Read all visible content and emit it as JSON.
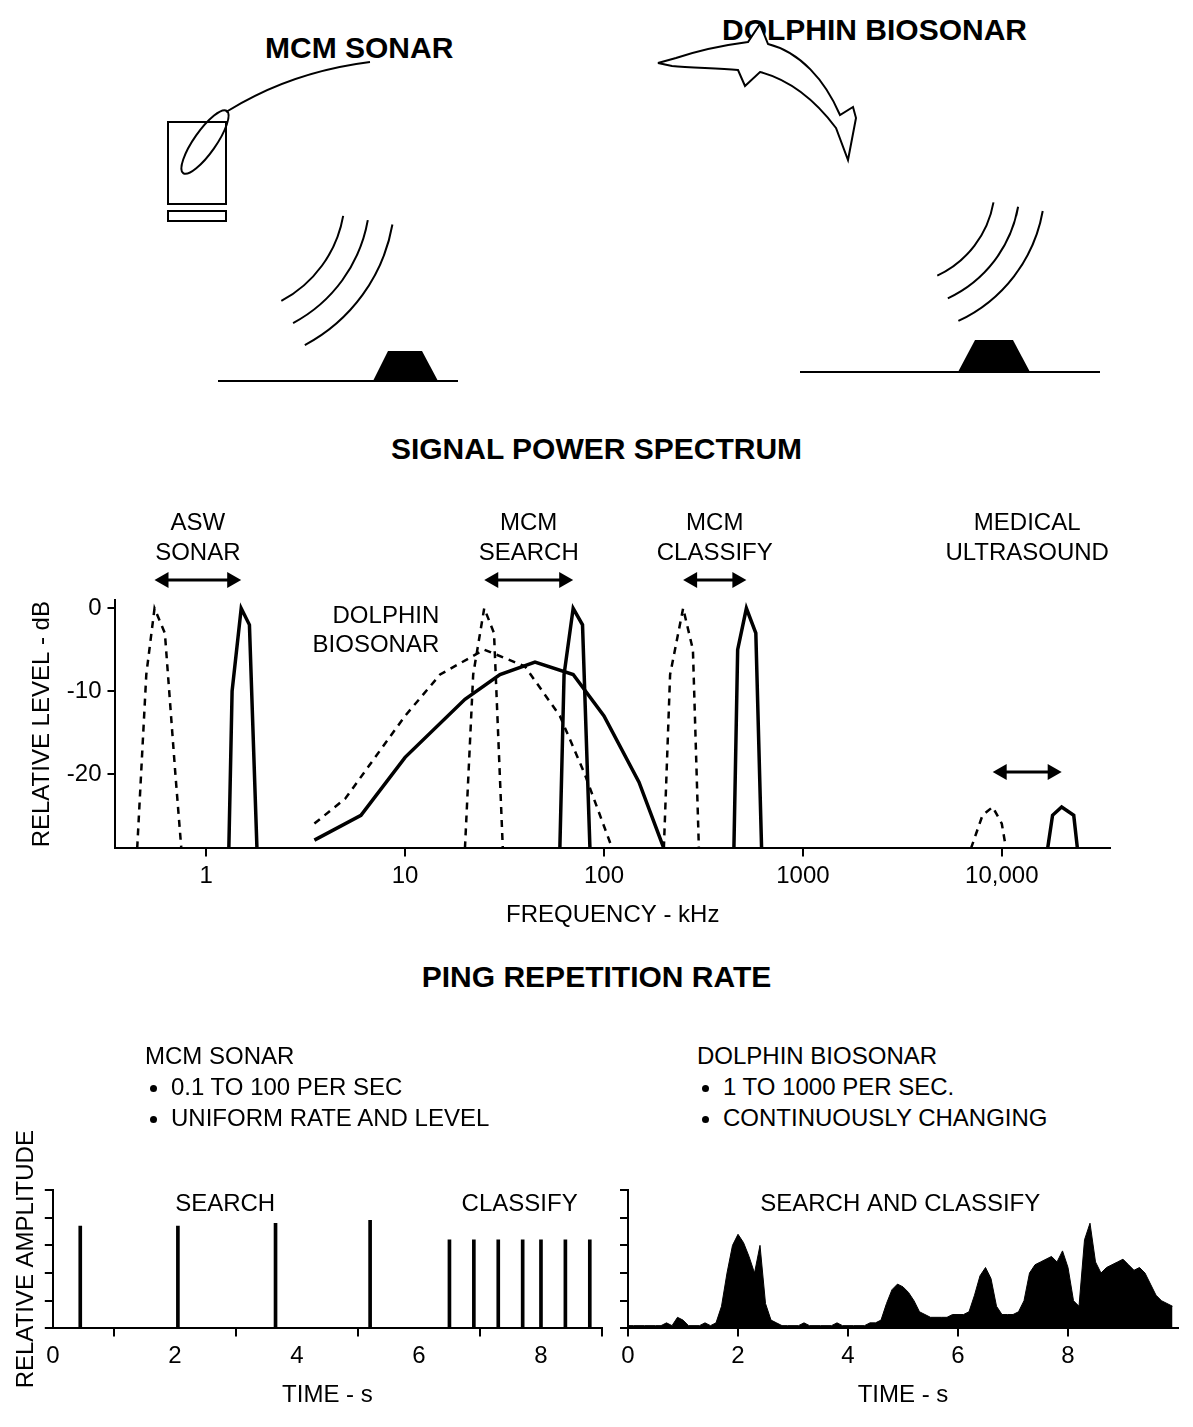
{
  "diagram": {
    "labels": [
      "MCM SONAR",
      "DOLPHIN BIOSONAR"
    ]
  },
  "section_title": "PING REPETITION RATE",
  "chart_data": [
    {
      "type": "line",
      "title": "SIGNAL POWER SPECTRUM",
      "x_label": "FREQUENCY - kHz",
      "y_label": "RELATIVE LEVEL - dB",
      "log": "x",
      "grid": false,
      "xlim": [
        0.35,
        35000
      ],
      "xticks": [
        1,
        10,
        100,
        1000,
        {
          "value": 10000,
          "label": "10,000"
        }
      ],
      "ylim": [
        -29,
        1
      ],
      "yticks": [
        -20,
        -10,
        0
      ],
      "annotations": [
        "ASW SONAR",
        "DOLPHIN BIOSONAR",
        "MCM SEARCH",
        "MCM CLASSIFY",
        "MEDICAL ULTRASOUND"
      ],
      "series": [
        {
          "x": [
            0.45,
            0.5,
            0.55,
            0.62,
            0.7,
            0.75
          ],
          "values": [
            -29,
            -8,
            0,
            -3,
            -20,
            -29
          ],
          "line_style": "dashed",
          "color": "#000000"
        },
        {
          "x": [
            1.3,
            1.35,
            1.5,
            1.65,
            1.8
          ],
          "values": [
            -29,
            -10,
            0,
            -2,
            -29
          ],
          "line_style": "solid",
          "color": "#000000"
        },
        {
          "x": [
            3.5,
            5,
            10,
            15,
            25,
            40,
            60,
            80,
            110
          ],
          "values": [
            -26,
            -23,
            -13,
            -8,
            -5,
            -7,
            -13,
            -20,
            -29
          ],
          "line_style": "dashed",
          "color": "#000000"
        },
        {
          "x": [
            3.5,
            6,
            10,
            20,
            30,
            45,
            70,
            100,
            150,
            200
          ],
          "values": [
            -28,
            -25,
            -18,
            -11,
            -8,
            -6.5,
            -8,
            -13,
            -21,
            -29
          ],
          "line_style": "solid",
          "color": "#000000"
        },
        {
          "x": [
            20,
            22,
            25,
            28,
            31
          ],
          "values": [
            -29,
            -8,
            0,
            -3,
            -29
          ],
          "line_style": "dashed",
          "color": "#000000"
        },
        {
          "x": [
            60,
            63,
            70,
            78,
            85
          ],
          "values": [
            -29,
            -8,
            0,
            -2,
            -29
          ],
          "line_style": "solid",
          "color": "#000000"
        },
        {
          "x": [
            200,
            215,
            250,
            280,
            300
          ],
          "values": [
            -29,
            -8,
            0,
            -5,
            -29
          ],
          "line_style": "dashed",
          "color": "#000000"
        },
        {
          "x": [
            450,
            470,
            520,
            580,
            620
          ],
          "values": [
            -29,
            -5,
            0,
            -3,
            -29
          ],
          "line_style": "solid",
          "color": "#000000"
        },
        {
          "x": [
            7000,
            8000,
            9000,
            10000,
            10500
          ],
          "values": [
            -29,
            -25,
            -24,
            -26,
            -29
          ],
          "line_style": "dashed",
          "color": "#000000"
        },
        {
          "x": [
            17000,
            18000,
            20000,
            23000,
            24000
          ],
          "values": [
            -29,
            -25,
            -24,
            -25,
            -29
          ],
          "line_style": "solid",
          "color": "#000000"
        }
      ]
    },
    {
      "type": "bar",
      "title": "MCM SONAR",
      "notes": [
        "0.1 TO 100 PER SEC",
        "UNIFORM RATE AND LEVEL"
      ],
      "x_label": "TIME - s",
      "y_label": "RELATIVE AMPLITUDE",
      "grid": false,
      "tick_labels": "x",
      "xlim": [
        0,
        9
      ],
      "xticks": [
        0,
        2,
        4,
        6,
        8
      ],
      "ylim": [
        0,
        5
      ],
      "yticks": [
        0,
        1,
        2,
        3,
        4,
        5
      ],
      "series": [
        {
          "name": "SEARCH",
          "x": [
            0.45,
            2.05,
            3.65,
            5.2
          ],
          "values": [
            3.7,
            3.7,
            3.8,
            3.9
          ],
          "color": "#000000"
        },
        {
          "name": "CLASSIFY",
          "x": [
            6.5,
            6.9,
            7.3,
            7.7,
            8.0,
            8.4,
            8.8
          ],
          "values": [
            3.2,
            3.2,
            3.2,
            3.2,
            3.2,
            3.2,
            3.2
          ],
          "color": "#000000"
        }
      ]
    },
    {
      "type": "area",
      "title": "DOLPHIN BIOSONAR",
      "notes": [
        "1 TO 1000 PER SEC.",
        "CONTINUOUSLY CHANGING"
      ],
      "x_label": "TIME - s",
      "grid": false,
      "tick_labels": "x",
      "xlim": [
        0,
        10
      ],
      "xticks": [
        0,
        2,
        4,
        6,
        8
      ],
      "ylim": [
        0,
        5
      ],
      "yticks": [
        0,
        1,
        2,
        3,
        4,
        5
      ],
      "series": [
        {
          "name": "SEARCH AND CLASSIFY",
          "color": "#000000",
          "x": [
            0,
            0.1,
            0.2,
            0.3,
            0.4,
            0.5,
            0.6,
            0.7,
            0.8,
            0.9,
            1.0,
            1.1,
            1.2,
            1.3,
            1.4,
            1.5,
            1.6,
            1.7,
            1.8,
            1.9,
            2.0,
            2.1,
            2.2,
            2.3,
            2.4,
            2.5,
            2.6,
            2.7,
            2.8,
            2.9,
            3.0,
            3.1,
            3.2,
            3.3,
            3.4,
            3.5,
            3.6,
            3.7,
            3.8,
            3.9,
            4.0,
            4.1,
            4.2,
            4.3,
            4.4,
            4.5,
            4.6,
            4.7,
            4.8,
            4.9,
            5.0,
            5.1,
            5.2,
            5.3,
            5.4,
            5.5,
            5.6,
            5.7,
            5.8,
            5.9,
            6.0,
            6.1,
            6.2,
            6.3,
            6.4,
            6.5,
            6.6,
            6.7,
            6.8,
            6.9,
            7.0,
            7.1,
            7.2,
            7.3,
            7.4,
            7.5,
            7.6,
            7.7,
            7.8,
            7.9,
            8.0,
            8.1,
            8.2,
            8.3,
            8.4,
            8.5,
            8.6,
            8.7,
            8.8,
            8.9,
            9.0,
            9.1,
            9.2,
            9.3,
            9.4,
            9.5,
            9.6,
            9.7,
            9.8,
            9.9
          ],
          "values": [
            0.1,
            0.1,
            0.1,
            0.1,
            0.1,
            0.1,
            0.1,
            0.2,
            0.1,
            0.4,
            0.3,
            0.1,
            0.1,
            0.1,
            0.2,
            0.1,
            0.2,
            0.8,
            2.0,
            3.0,
            3.4,
            3.1,
            2.6,
            2.0,
            3.0,
            0.9,
            0.3,
            0.2,
            0.1,
            0.1,
            0.1,
            0.1,
            0.2,
            0.1,
            0.1,
            0.1,
            0.1,
            0.1,
            0.2,
            0.1,
            0.1,
            0.1,
            0.1,
            0.1,
            0.2,
            0.2,
            0.3,
            0.9,
            1.4,
            1.6,
            1.5,
            1.3,
            1.0,
            0.6,
            0.5,
            0.4,
            0.4,
            0.4,
            0.4,
            0.5,
            0.5,
            0.5,
            0.6,
            1.2,
            1.9,
            2.2,
            1.8,
            0.8,
            0.5,
            0.5,
            0.5,
            0.6,
            1.0,
            2.0,
            2.3,
            2.4,
            2.5,
            2.6,
            2.4,
            2.8,
            2.2,
            1.0,
            0.8,
            3.2,
            3.8,
            2.4,
            2.0,
            2.2,
            2.3,
            2.4,
            2.5,
            2.3,
            2.1,
            2.2,
            2.0,
            1.6,
            1.2,
            1.0,
            0.9,
            0.8
          ]
        }
      ]
    }
  ]
}
